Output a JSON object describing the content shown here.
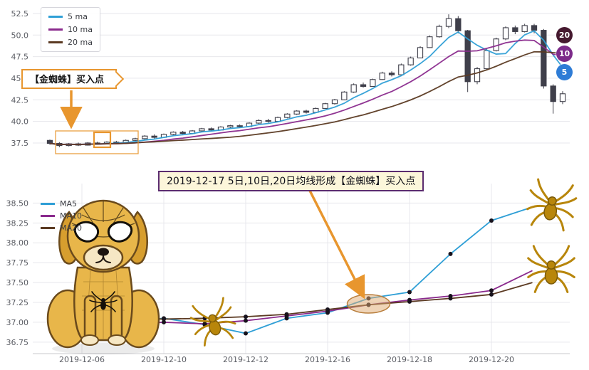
{
  "colors": {
    "ma5": "#2f9fd6",
    "ma10": "#8a2a8d",
    "ma20": "#5b3a22",
    "candle": "#3f3f4a",
    "highlight_orange": "#e8962e",
    "annotation_border": "#5b2c6f",
    "annotation_bg": "#fcf6da",
    "grid": "#e7e7ec",
    "gold_spider": "#b8860b"
  },
  "chart_data": [
    {
      "id": "daily-candlestick",
      "type": "candlestick",
      "title": "",
      "grid": true,
      "legend_position": "top-left",
      "legend": [
        {
          "label": "5 ma",
          "color": "#2f9fd6"
        },
        {
          "label": "10 ma",
          "color": "#8a2a8d"
        },
        {
          "label": "20 ma",
          "color": "#5b3a22"
        }
      ],
      "y_ticks": [
        "52.5",
        "50.0",
        "47.5",
        "45.0",
        "42.5",
        "40.0",
        "37.5"
      ],
      "ylim": [
        35.6,
        53.4
      ],
      "ma_periods": [
        5,
        10,
        20
      ],
      "candles_ohlc": [
        [
          37.8,
          37.9,
          37.3,
          37.45
        ],
        [
          37.45,
          37.6,
          37.0,
          37.2
        ],
        [
          37.2,
          37.5,
          37.1,
          37.4
        ],
        [
          37.4,
          37.55,
          37.15,
          37.25
        ],
        [
          37.25,
          37.6,
          37.2,
          37.5
        ],
        [
          37.5,
          37.65,
          37.3,
          37.45
        ],
        [
          37.45,
          37.7,
          37.35,
          37.6
        ],
        [
          37.6,
          37.75,
          37.4,
          37.5
        ],
        [
          37.5,
          37.9,
          37.45,
          37.8
        ],
        [
          37.8,
          38.1,
          37.7,
          38.0
        ],
        [
          38.0,
          38.4,
          37.9,
          38.3
        ],
        [
          38.3,
          38.5,
          38.0,
          38.15
        ],
        [
          38.15,
          38.6,
          38.1,
          38.5
        ],
        [
          38.5,
          38.85,
          38.4,
          38.75
        ],
        [
          38.75,
          38.9,
          38.5,
          38.6
        ],
        [
          38.6,
          39.0,
          38.55,
          38.9
        ],
        [
          38.9,
          39.25,
          38.8,
          39.15
        ],
        [
          39.15,
          39.3,
          38.9,
          39.0
        ],
        [
          39.0,
          39.45,
          38.95,
          39.35
        ],
        [
          39.35,
          39.6,
          39.2,
          39.5
        ],
        [
          39.5,
          39.65,
          39.25,
          39.4
        ],
        [
          39.4,
          39.9,
          39.35,
          39.8
        ],
        [
          39.8,
          40.25,
          39.7,
          40.1
        ],
        [
          40.1,
          40.3,
          39.85,
          40.0
        ],
        [
          40.0,
          40.55,
          39.95,
          40.45
        ],
        [
          40.45,
          40.95,
          40.35,
          40.85
        ],
        [
          40.85,
          41.3,
          40.75,
          41.2
        ],
        [
          41.2,
          41.35,
          40.9,
          41.05
        ],
        [
          41.05,
          41.6,
          41.0,
          41.5
        ],
        [
          41.5,
          42.15,
          41.45,
          42.05
        ],
        [
          42.05,
          42.6,
          41.95,
          42.5
        ],
        [
          42.5,
          43.5,
          42.45,
          43.4
        ],
        [
          43.4,
          44.4,
          43.3,
          44.25
        ],
        [
          44.25,
          44.5,
          43.9,
          44.05
        ],
        [
          44.05,
          44.95,
          44.0,
          44.85
        ],
        [
          44.85,
          45.75,
          44.8,
          45.6
        ],
        [
          45.6,
          45.8,
          45.2,
          45.4
        ],
        [
          45.4,
          46.7,
          45.35,
          46.55
        ],
        [
          46.55,
          47.5,
          46.45,
          47.35
        ],
        [
          47.35,
          48.7,
          47.3,
          48.55
        ],
        [
          48.55,
          49.95,
          48.5,
          49.8
        ],
        [
          49.8,
          51.2,
          49.7,
          51.0
        ],
        [
          51.0,
          52.4,
          50.8,
          51.9
        ],
        [
          51.9,
          52.2,
          50.2,
          50.5
        ],
        [
          50.5,
          50.6,
          43.4,
          44.6
        ],
        [
          44.6,
          46.3,
          44.3,
          46.1
        ],
        [
          46.1,
          48.4,
          46.0,
          48.2
        ],
        [
          48.2,
          49.7,
          48.1,
          49.55
        ],
        [
          49.55,
          51.0,
          49.4,
          50.85
        ],
        [
          50.85,
          51.1,
          50.1,
          50.4
        ],
        [
          50.4,
          51.3,
          50.3,
          51.1
        ],
        [
          51.1,
          51.3,
          50.2,
          50.55
        ],
        [
          50.55,
          50.7,
          43.8,
          44.1
        ],
        [
          44.1,
          44.3,
          40.9,
          42.3
        ],
        [
          42.3,
          43.5,
          42.0,
          43.2
        ]
      ],
      "end_badges": [
        {
          "label": "20",
          "color": "#45192f"
        },
        {
          "label": "10",
          "color": "#7d2b8a"
        },
        {
          "label": "5",
          "color": "#2e7cd6"
        }
      ],
      "annotation": {
        "label": "【金蜘蛛】买入点",
        "color": "#e8962e"
      }
    },
    {
      "id": "ma-detail-lines",
      "type": "line",
      "title": "",
      "grid": true,
      "legend_position": "top-left",
      "legend": [
        {
          "label": "MA5",
          "color": "#2f9fd6"
        },
        {
          "label": "MA10",
          "color": "#8a2a8d"
        },
        {
          "label": "MA20",
          "color": "#5b3a22"
        }
      ],
      "x": [
        "2019-12-06",
        "2019-12-09",
        "2019-12-10",
        "2019-12-11",
        "2019-12-12",
        "2019-12-13",
        "2019-12-16",
        "2019-12-17",
        "2019-12-18",
        "2019-12-19",
        "2019-12-20",
        "2019-12-23"
      ],
      "x_tick_labels": [
        "2019-12-06",
        "2019-12-10",
        "2019-12-12",
        "2019-12-16",
        "2019-12-18",
        "2019-12-20"
      ],
      "y_ticks": [
        "38.50",
        "38.25",
        "38.00",
        "37.75",
        "37.50",
        "37.25",
        "37.00",
        "36.75"
      ],
      "ylim": [
        36.65,
        38.62
      ],
      "series": [
        {
          "name": "MA5",
          "color": "#2f9fd6",
          "values": [
            37.04,
            37.0,
            37.05,
            36.97,
            36.86,
            37.05,
            37.12,
            37.3,
            37.38,
            37.86,
            38.28,
            38.45
          ]
        },
        {
          "name": "MA10",
          "color": "#8a2a8d",
          "values": [
            37.0,
            36.97,
            37.0,
            36.98,
            37.02,
            37.08,
            37.14,
            37.22,
            37.28,
            37.33,
            37.4,
            37.65
          ]
        },
        {
          "name": "MA20",
          "color": "#5b3a22",
          "values": [
            37.08,
            37.05,
            37.04,
            37.05,
            37.07,
            37.1,
            37.16,
            37.22,
            37.26,
            37.3,
            37.35,
            37.5
          ]
        }
      ],
      "annotation": {
        "label": "2019-12-17 5日,10日,20日均线形成【金蜘蛛】买入点"
      },
      "highlight_point": {
        "x": "2019-12-17",
        "y": 37.25
      }
    }
  ],
  "decorations": {
    "dog_illustration": "golden-dog-in-spider-costume",
    "spider_markers": "gold-spider"
  }
}
